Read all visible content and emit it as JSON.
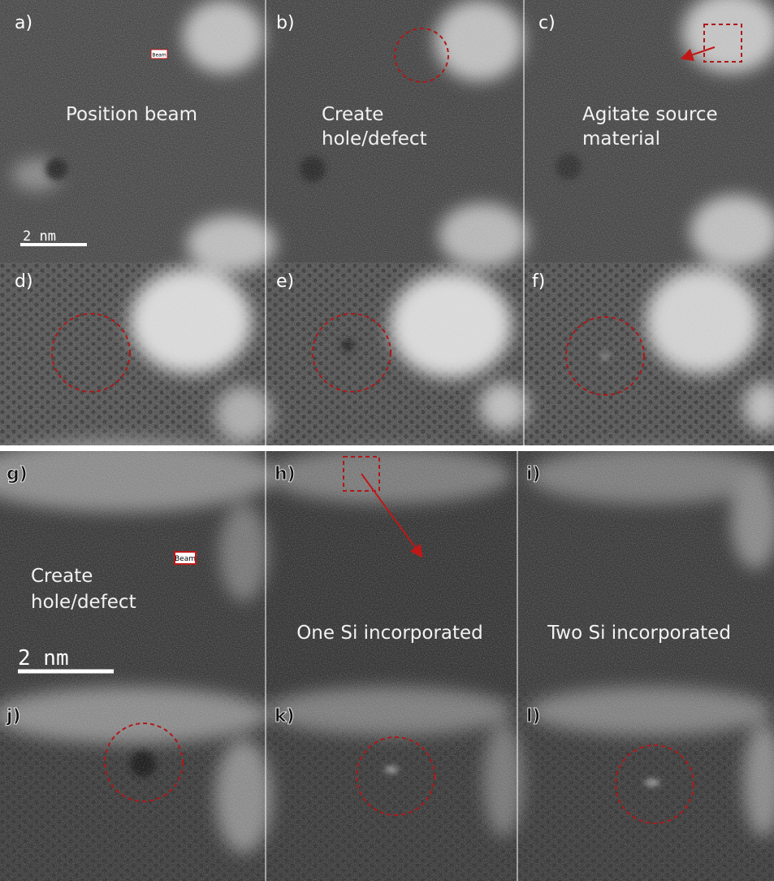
{
  "panels": [
    {
      "label": "a)",
      "caption": [
        "Position beam"
      ]
    },
    {
      "label": "b)",
      "caption": [
        "Create",
        "hole/defect"
      ]
    },
    {
      "label": "c)",
      "caption": [
        "Agitate source",
        "material"
      ]
    },
    {
      "label": "d)"
    },
    {
      "label": "e)"
    },
    {
      "label": "f)"
    },
    {
      "label": "g)",
      "caption": [
        "Create",
        "hole/defect"
      ]
    },
    {
      "label": "h)",
      "caption": [
        "One Si incorporated"
      ]
    },
    {
      "label": "i)",
      "caption": [
        "Two Si incorporated"
      ]
    },
    {
      "label": "j)"
    },
    {
      "label": "k)"
    },
    {
      "label": "l)"
    }
  ],
  "scale_bars": [
    "2 nm",
    "2 nm"
  ],
  "beam_tags": [
    "Beam",
    "Beam"
  ]
}
